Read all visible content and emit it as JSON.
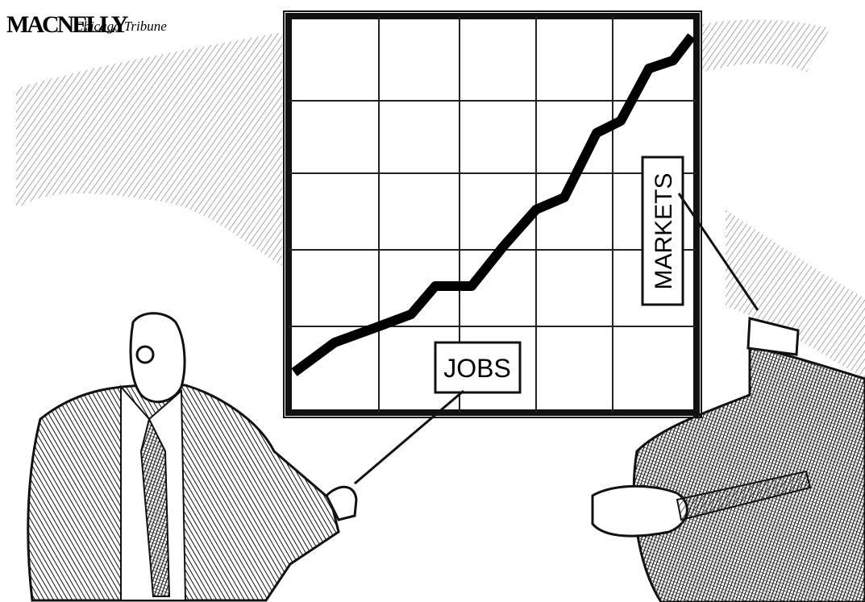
{
  "signature": "MACNELLY",
  "publication": "Chicago Tribune",
  "labels": {
    "jobs": "JOBS",
    "markets": "MARKETS"
  }
}
